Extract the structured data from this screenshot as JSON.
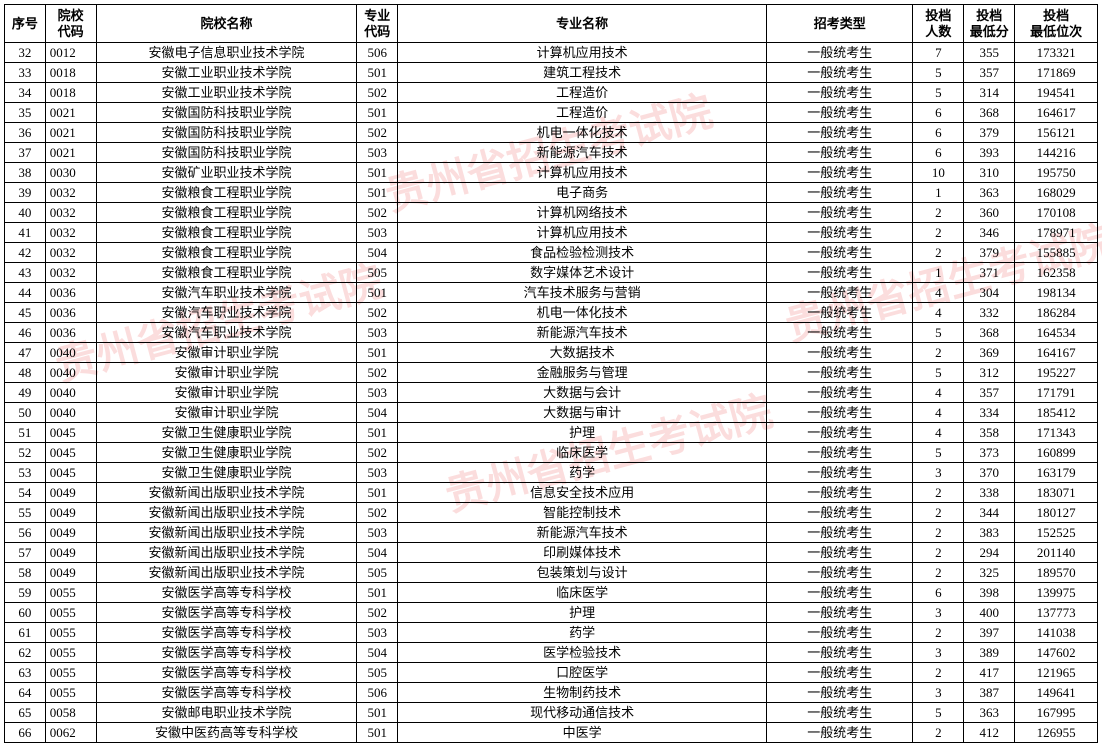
{
  "watermark_text": "贵州省招生考试院",
  "watermark_color": "rgba(230,30,30,0.15)",
  "table": {
    "columns": [
      {
        "key": "seq",
        "label": "序号",
        "class": "col-seq"
      },
      {
        "key": "code",
        "label": "院校\n代码",
        "class": "col-code"
      },
      {
        "key": "school",
        "label": "院校名称",
        "class": "col-school"
      },
      {
        "key": "major_code",
        "label": "专业\n代码",
        "class": "col-major-code"
      },
      {
        "key": "major",
        "label": "专业名称",
        "class": "col-major"
      },
      {
        "key": "type",
        "label": "招考类型",
        "class": "col-type"
      },
      {
        "key": "count",
        "label": "投档\n人数",
        "class": "col-count"
      },
      {
        "key": "score",
        "label": "投档\n最低分",
        "class": "col-score"
      },
      {
        "key": "rank",
        "label": "投档\n最低位次",
        "class": "col-rank"
      }
    ],
    "rows": [
      {
        "seq": "32",
        "code": "0012",
        "school": "安徽电子信息职业技术学院",
        "major_code": "506",
        "major": "计算机应用技术",
        "type": "一般统考生",
        "count": "7",
        "score": "355",
        "rank": "173321"
      },
      {
        "seq": "33",
        "code": "0018",
        "school": "安徽工业职业技术学院",
        "major_code": "501",
        "major": "建筑工程技术",
        "type": "一般统考生",
        "count": "5",
        "score": "357",
        "rank": "171869"
      },
      {
        "seq": "34",
        "code": "0018",
        "school": "安徽工业职业技术学院",
        "major_code": "502",
        "major": "工程造价",
        "type": "一般统考生",
        "count": "5",
        "score": "314",
        "rank": "194541"
      },
      {
        "seq": "35",
        "code": "0021",
        "school": "安徽国防科技职业学院",
        "major_code": "501",
        "major": "工程造价",
        "type": "一般统考生",
        "count": "6",
        "score": "368",
        "rank": "164617"
      },
      {
        "seq": "36",
        "code": "0021",
        "school": "安徽国防科技职业学院",
        "major_code": "502",
        "major": "机电一体化技术",
        "type": "一般统考生",
        "count": "6",
        "score": "379",
        "rank": "156121"
      },
      {
        "seq": "37",
        "code": "0021",
        "school": "安徽国防科技职业学院",
        "major_code": "503",
        "major": "新能源汽车技术",
        "type": "一般统考生",
        "count": "6",
        "score": "393",
        "rank": "144216"
      },
      {
        "seq": "38",
        "code": "0030",
        "school": "安徽矿业职业技术学院",
        "major_code": "501",
        "major": "计算机应用技术",
        "type": "一般统考生",
        "count": "10",
        "score": "310",
        "rank": "195750"
      },
      {
        "seq": "39",
        "code": "0032",
        "school": "安徽粮食工程职业学院",
        "major_code": "501",
        "major": "电子商务",
        "type": "一般统考生",
        "count": "1",
        "score": "363",
        "rank": "168029"
      },
      {
        "seq": "40",
        "code": "0032",
        "school": "安徽粮食工程职业学院",
        "major_code": "502",
        "major": "计算机网络技术",
        "type": "一般统考生",
        "count": "2",
        "score": "360",
        "rank": "170108"
      },
      {
        "seq": "41",
        "code": "0032",
        "school": "安徽粮食工程职业学院",
        "major_code": "503",
        "major": "计算机应用技术",
        "type": "一般统考生",
        "count": "2",
        "score": "346",
        "rank": "178971"
      },
      {
        "seq": "42",
        "code": "0032",
        "school": "安徽粮食工程职业学院",
        "major_code": "504",
        "major": "食品检验检测技术",
        "type": "一般统考生",
        "count": "2",
        "score": "379",
        "rank": "155885"
      },
      {
        "seq": "43",
        "code": "0032",
        "school": "安徽粮食工程职业学院",
        "major_code": "505",
        "major": "数字媒体艺术设计",
        "type": "一般统考生",
        "count": "1",
        "score": "371",
        "rank": "162358"
      },
      {
        "seq": "44",
        "code": "0036",
        "school": "安徽汽车职业技术学院",
        "major_code": "501",
        "major": "汽车技术服务与营销",
        "type": "一般统考生",
        "count": "4",
        "score": "304",
        "rank": "198134"
      },
      {
        "seq": "45",
        "code": "0036",
        "school": "安徽汽车职业技术学院",
        "major_code": "502",
        "major": "机电一体化技术",
        "type": "一般统考生",
        "count": "4",
        "score": "332",
        "rank": "186284"
      },
      {
        "seq": "46",
        "code": "0036",
        "school": "安徽汽车职业技术学院",
        "major_code": "503",
        "major": "新能源汽车技术",
        "type": "一般统考生",
        "count": "5",
        "score": "368",
        "rank": "164534"
      },
      {
        "seq": "47",
        "code": "0040",
        "school": "安徽审计职业学院",
        "major_code": "501",
        "major": "大数据技术",
        "type": "一般统考生",
        "count": "2",
        "score": "369",
        "rank": "164167"
      },
      {
        "seq": "48",
        "code": "0040",
        "school": "安徽审计职业学院",
        "major_code": "502",
        "major": "金融服务与管理",
        "type": "一般统考生",
        "count": "5",
        "score": "312",
        "rank": "195227"
      },
      {
        "seq": "49",
        "code": "0040",
        "school": "安徽审计职业学院",
        "major_code": "503",
        "major": "大数据与会计",
        "type": "一般统考生",
        "count": "4",
        "score": "357",
        "rank": "171791"
      },
      {
        "seq": "50",
        "code": "0040",
        "school": "安徽审计职业学院",
        "major_code": "504",
        "major": "大数据与审计",
        "type": "一般统考生",
        "count": "4",
        "score": "334",
        "rank": "185412"
      },
      {
        "seq": "51",
        "code": "0045",
        "school": "安徽卫生健康职业学院",
        "major_code": "501",
        "major": "护理",
        "type": "一般统考生",
        "count": "4",
        "score": "358",
        "rank": "171343"
      },
      {
        "seq": "52",
        "code": "0045",
        "school": "安徽卫生健康职业学院",
        "major_code": "502",
        "major": "临床医学",
        "type": "一般统考生",
        "count": "5",
        "score": "373",
        "rank": "160899"
      },
      {
        "seq": "53",
        "code": "0045",
        "school": "安徽卫生健康职业学院",
        "major_code": "503",
        "major": "药学",
        "type": "一般统考生",
        "count": "3",
        "score": "370",
        "rank": "163179"
      },
      {
        "seq": "54",
        "code": "0049",
        "school": "安徽新闻出版职业技术学院",
        "major_code": "501",
        "major": "信息安全技术应用",
        "type": "一般统考生",
        "count": "2",
        "score": "338",
        "rank": "183071"
      },
      {
        "seq": "55",
        "code": "0049",
        "school": "安徽新闻出版职业技术学院",
        "major_code": "502",
        "major": "智能控制技术",
        "type": "一般统考生",
        "count": "2",
        "score": "344",
        "rank": "180127"
      },
      {
        "seq": "56",
        "code": "0049",
        "school": "安徽新闻出版职业技术学院",
        "major_code": "503",
        "major": "新能源汽车技术",
        "type": "一般统考生",
        "count": "2",
        "score": "383",
        "rank": "152525"
      },
      {
        "seq": "57",
        "code": "0049",
        "school": "安徽新闻出版职业技术学院",
        "major_code": "504",
        "major": "印刷媒体技术",
        "type": "一般统考生",
        "count": "2",
        "score": "294",
        "rank": "201140"
      },
      {
        "seq": "58",
        "code": "0049",
        "school": "安徽新闻出版职业技术学院",
        "major_code": "505",
        "major": "包装策划与设计",
        "type": "一般统考生",
        "count": "2",
        "score": "325",
        "rank": "189570"
      },
      {
        "seq": "59",
        "code": "0055",
        "school": "安徽医学高等专科学校",
        "major_code": "501",
        "major": "临床医学",
        "type": "一般统考生",
        "count": "6",
        "score": "398",
        "rank": "139975"
      },
      {
        "seq": "60",
        "code": "0055",
        "school": "安徽医学高等专科学校",
        "major_code": "502",
        "major": "护理",
        "type": "一般统考生",
        "count": "3",
        "score": "400",
        "rank": "137773"
      },
      {
        "seq": "61",
        "code": "0055",
        "school": "安徽医学高等专科学校",
        "major_code": "503",
        "major": "药学",
        "type": "一般统考生",
        "count": "2",
        "score": "397",
        "rank": "141038"
      },
      {
        "seq": "62",
        "code": "0055",
        "school": "安徽医学高等专科学校",
        "major_code": "504",
        "major": "医学检验技术",
        "type": "一般统考生",
        "count": "3",
        "score": "389",
        "rank": "147602"
      },
      {
        "seq": "63",
        "code": "0055",
        "school": "安徽医学高等专科学校",
        "major_code": "505",
        "major": "口腔医学",
        "type": "一般统考生",
        "count": "2",
        "score": "417",
        "rank": "121965"
      },
      {
        "seq": "64",
        "code": "0055",
        "school": "安徽医学高等专科学校",
        "major_code": "506",
        "major": "生物制药技术",
        "type": "一般统考生",
        "count": "3",
        "score": "387",
        "rank": "149641"
      },
      {
        "seq": "65",
        "code": "0058",
        "school": "安徽邮电职业技术学院",
        "major_code": "501",
        "major": "现代移动通信技术",
        "type": "一般统考生",
        "count": "5",
        "score": "363",
        "rank": "167995"
      },
      {
        "seq": "66",
        "code": "0062",
        "school": "安徽中医药高等专科学校",
        "major_code": "501",
        "major": "中医学",
        "type": "一般统考生",
        "count": "2",
        "score": "412",
        "rank": "126955"
      }
    ]
  }
}
